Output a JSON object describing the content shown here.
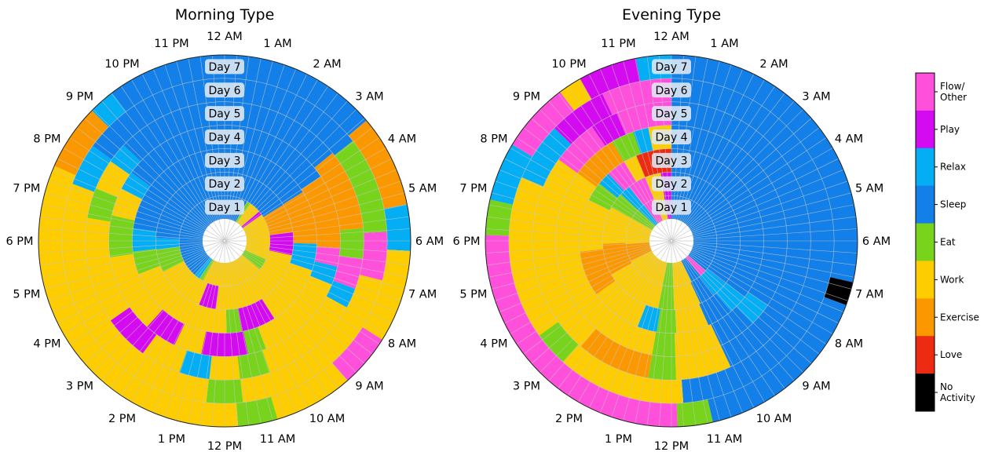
{
  "chart_data": [
    {
      "type": "polar-heatmap",
      "title": "Morning Type",
      "hour_labels": [
        "12 AM",
        "1 AM",
        "2 AM",
        "3 AM",
        "4 AM",
        "5 AM",
        "6 AM",
        "7 AM",
        "8 AM",
        "9 AM",
        "10 AM",
        "11 AM",
        "12 PM",
        "1 PM",
        "2 PM",
        "3 PM",
        "4 PM",
        "5 PM",
        "6 PM",
        "7 PM",
        "8 PM",
        "9 PM",
        "10 PM",
        "11 PM"
      ],
      "day_labels": [
        "Day 1",
        "Day 2",
        "Day 3",
        "Day 4",
        "Day 5",
        "Day 6",
        "Day 7"
      ],
      "slot_minutes": 30,
      "rings": [
        "SSSSSSSSSSSSEEWWWWWWPPWWWWWWWWWWWWWWWWWWWWWWWWEEEEEEWWWWWWWWWWWWWWWWWWWWWWWWWWWWWWWWEERRRSSSSSSSSSSSSSSSSSSSSSSSSSSSSSSSSSSSSSSSSSSSSSSSSSSSSSSSS",
        "SSSSSSSSSSSSSSSSSSSSSSSSXXXXXXXXXXPPPPPPPPWWWWWWWWWWWWWWWWWWWWWWWWWWWWWWWWWWWPPPPPPWWWWWWWWWWWWWWWWWEEEEEEEERRRRSSSSSSSSSSSSSSSSSSSSSSSSSSSSSSSSSSSS",
        "SSSSSSSSSSSSSSSSSSSSSSSSXXXXXXXXXXXXXXRRRRRRRWWWWWWWWWWWWWWWWPPPPPPPPPEEEEWWWWWWWWWWWWWWWWWWWWWWWWWWWWWEEEEEERRRRRRSSSSSSSSSSSSSSSSSSSSSSSSSSSSSSSSSS",
        "SSSSSSSSSSSSSSSSSSSSSSSSXXXXXXXXXXXXXXXXFFFFRRRRWWWWWWWWWWWWWWWWWWWWEEEEPPPPPPPPPPWWWWWWPPPPPPPWWWWWWWWWWWWWWWWWEEEEEEEEEWWWWWWRRRRSSSSSSSSSSSSSSSSSSSSSSS",
        "SSSSSSSSSSSSSSSSSSSSSSSSXXXXXXXXXXXXXXXXEEEEEEFFFFFFRRRRWWWWWWWWWWWWWWWWWWWWEEEEEEWWWWWWRRRRRRWWWWWWWWPPPPPPPPPWWWWWWWWWWWWWWWWWWWWWEEEEEEWWWWWWRRRRSSSSSSSSSSSSSSSSSSSSSS",
        "SSSSSSSSSSSSSSSSSSSSSSSSEEEEEEEEEEEEEEEEFFFFFFFFWWWWWWWWWWWWWWWWWWWWWWWWWWWWWWWWEEEEEEWWWWWWWWWWWWWWWWWWWWWWWWWWWWWWWWWWWWWWWWWWWWWWWWRRRRRRRSSSSSSSSSSSSSSSSSSSSSSSSS",
        "SSSSSSSSSSSSSSSSSSSSSSSSXXXXXXXXXXXXXXRRRRRRRWWWWWWWWWWWWWWFFFFFFFFWWWWWWWWWWWWEEEEEEWWWWWWWWWWWWWWWWWWWWWWWWWWWWWWWWWWWWWWWWWWWWWWWWWWWWWWWWWXXXXXXXXXXRRRRSSSSSSSSSSSSSSSSSS"
      ]
    },
    {
      "type": "polar-heatmap",
      "title": "Evening Type",
      "hour_labels": [
        "12 AM",
        "1 AM",
        "2 AM",
        "3 AM",
        "4 AM",
        "5 AM",
        "6 AM",
        "7 AM",
        "8 AM",
        "9 AM",
        "10 AM",
        "11 AM",
        "12 PM",
        "1 PM",
        "2 PM",
        "3 PM",
        "4 PM",
        "5 PM",
        "6 PM",
        "7 PM",
        "8 PM",
        "9 PM",
        "10 PM",
        "11 PM"
      ],
      "day_labels": [
        "Day 1",
        "Day 2",
        "Day 3",
        "Day 4",
        "Day 5",
        "Day 6",
        "Day 7"
      ],
      "slot_minutes": 30,
      "rings": [
        "SSSSSSSSSSSSSSSSSSSSSSSSSSSSSSSSSSSSSSSSSSSSSSSSSSSSSSSSFFFFSSSSSSWWWWWWWWWWEEEEEEWWWWWWWWWWWWWWWWWWWWWWXXXXXXXXXXWWWWWWWWWWWWWWEEEEEERRRRFFFFFFWWWWWWPPPP",
        "SSSSSSSSSSSSSSSSSSSSSSSSSSSSSSSSSSSSSSSSSSSSSSSSSSSSSSSSSRRRRRRSSSSSSWWWWWWWWWWEEEEEEWWWWWWWWWWWWWWWWWWWWWWXXXXXXXXXXXXWWWWWWWWWWWWWWEEEEEERRRRFFFFFFFWWWWWWPPPP",
        "SSSSSSSSSSSSSSSSSSSSSSSSSSSSSSSSSSSSSSSSSSSSSSSSSSSSSSSSSSSSSSRRRRRRSSSSSSSSWWWWWWWWWWEEEEEERRRRRRWWWWWWWWWWWWWWWWXXXXXXXXXXXXXXWWWWWWWWWWWWWWWWEEEEEERRRRFFFFFFWWWWLLLLLLLLLLL",
        "SSSSSSSSSSSSSSSSSSSSSSSSSSSSSSSSSSSSSSSSSSSSSSSSSSSSSSSSSSSSSSSSRRRRRRSSSSSSSSSSWWWWWWWWWWWWEEEEEEWWWWWWWWWWWWWWWWWWWWWWWWWWWWWWWWWWWWWWWWWWWWWWWWWWWWWWWWWWWWXXXXXXXXXXXXEEEEEERRRRWWWWWW",
        "SSSSSSSSSSSSSSSSSSSSSSSSSSSSSSSSSSSSSSSSSSSSSSSSSSSSSSSSSSSSSSSSSSSSSSSSSSSSSSSSWWWWWWWWWWWWEEEEEEXXXXXXXXXXXXXXXXWWWWWWWWWWWWWWWWWWWWWWWWWWWWWWWWWWWWWWWWWWWWFFFFFFFFFFPPPPPPFFFFFFFFFFFF",
        "SSSSSSSSSSSSSSSSSSSSSSSSSSSSSSSSSSSSSSSSSSSSSSSSSSSSSSSSSSSSSSSSSSSSSSSSSSSSSSSSSSSSWWWWWWWWWWWWWWWWWWWWWWEEEEEEWWWWWWWWWWWWWWWWWWWWWWWWWWWWRRRRRRRRRRPPPPPPPPPPFFFFFFFFFFFF",
        "SSSSSSSSSSSSSSSSSSSSSSSSSSSSSSSSSSSSSSSSSSSSSSSSSSSSSSSSNNNNSSSSSSSSSSSSSSSSSSSSSSSSSSSSSSSEEEEEEFFFFFFFFFFFFFFFFFFFFFFFFFFFFFFFFFFFFFFFFFFFFFFFFFFFEEEEEERRRRRRRRRRFFFFFFFFFFFFWWWWPPPPPPPPPPRRRRRR"
      ]
    }
  ],
  "legend": {
    "codes": {
      "F": {
        "label": "Flow/\nOther",
        "color": "#ff50dc"
      },
      "P": {
        "label": "Play",
        "color": "#d40af0"
      },
      "R": {
        "label": "Relax",
        "color": "#03aef5"
      },
      "S": {
        "label": "Sleep",
        "color": "#1280e8"
      },
      "E": {
        "label": "Eat",
        "color": "#77d31c"
      },
      "W": {
        "label": "Work",
        "color": "#fdcd00"
      },
      "X": {
        "label": "Exercise",
        "color": "#fb9800"
      },
      "L": {
        "label": "Love",
        "color": "#ec2b12"
      },
      "N": {
        "label": "No\nActivity",
        "color": "#000000"
      }
    },
    "order": [
      "F",
      "P",
      "R",
      "S",
      "E",
      "W",
      "X",
      "L",
      "N"
    ]
  },
  "colors": {
    "grid": "#c8c8c8",
    "outline": "#222222",
    "daylabel_bg": "#dfe8f3"
  }
}
